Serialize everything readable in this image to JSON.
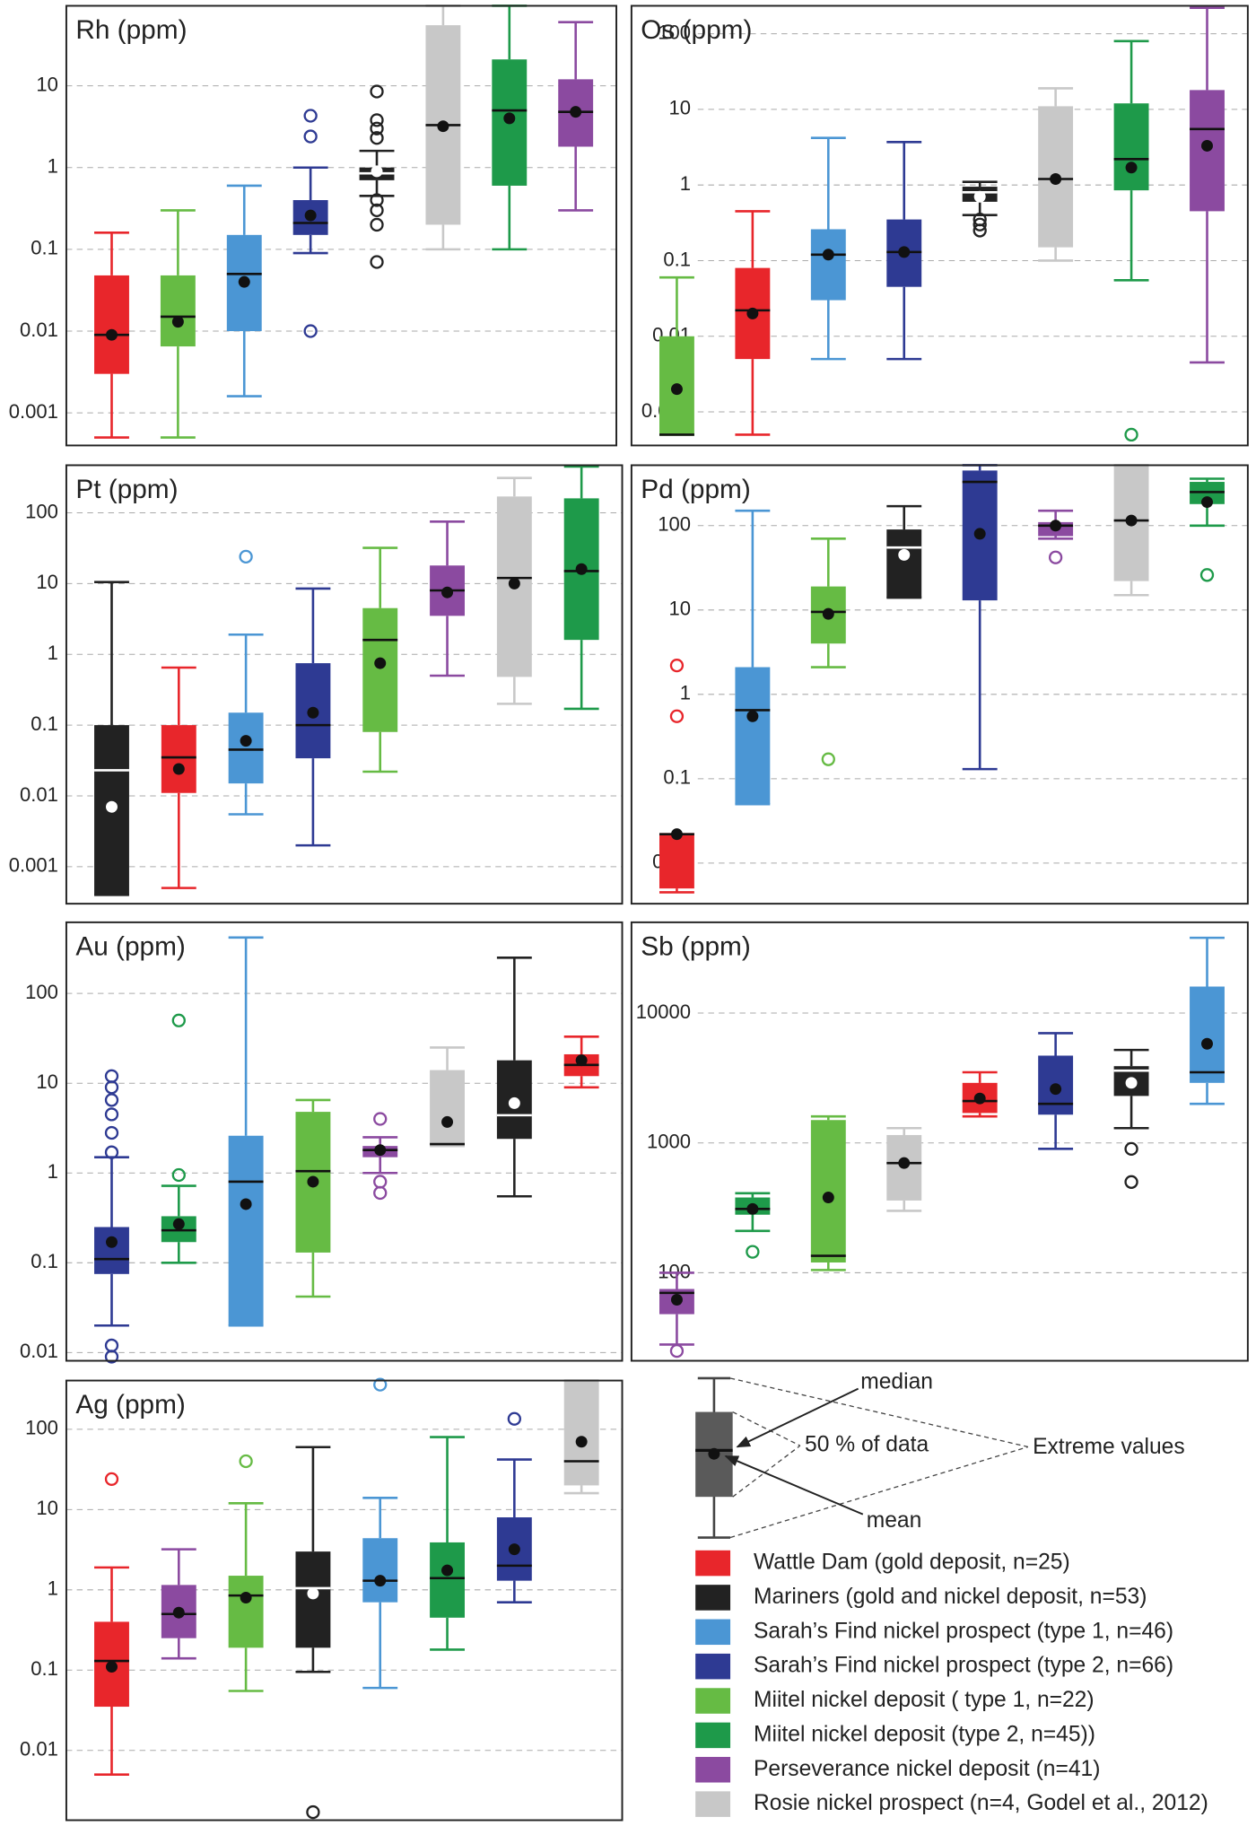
{
  "chart_data": [
    {
      "type": "box",
      "title": "Rh (ppm)",
      "yscale": "log",
      "grid": true,
      "ylim": [
        0.0004,
        95
      ],
      "yticks": [
        0.001,
        0.01,
        0.1,
        1,
        10
      ],
      "boxes": [
        {
          "color": "#e8262b",
          "whislo": 0.0005,
          "q1": 0.003,
          "med": 0.009,
          "q3": 0.048,
          "whishi": 0.16,
          "mean": 0.009
        },
        {
          "color": "#66bb44",
          "whislo": 0.0005,
          "q1": 0.0065,
          "med": 0.015,
          "q3": 0.048,
          "whishi": 0.3,
          "mean": 0.013
        },
        {
          "color": "#4b96d4",
          "whislo": 0.0016,
          "q1": 0.01,
          "med": 0.05,
          "q3": 0.15,
          "whishi": 0.6,
          "mean": 0.04
        },
        {
          "color": "#2e3a93",
          "whislo": 0.09,
          "q1": 0.15,
          "med": 0.21,
          "q3": 0.4,
          "whishi": 1.0,
          "mean": 0.26,
          "fliers": [
            4.3,
            2.4,
            0.01
          ]
        },
        {
          "color": "#222222",
          "whislo": 0.45,
          "q1": 0.7,
          "med": 0.85,
          "q3": 1.0,
          "whishi": 1.6,
          "mean": 0.9,
          "fliers": [
            8.5,
            3.8,
            3.0,
            2.3,
            0.4,
            0.3,
            0.2,
            0.07
          ]
        },
        {
          "color": "#c8c8c8",
          "whislo": 0.1,
          "q1": 0.2,
          "med": 3.3,
          "q3": 55,
          "whishi": 95,
          "mean": 3.2
        },
        {
          "color": "#1e9a4a",
          "whislo": 0.1,
          "q1": 0.6,
          "med": 5,
          "q3": 21,
          "whishi": 95,
          "mean": 4
        },
        {
          "color": "#8b4aa0",
          "whislo": 0.3,
          "q1": 1.8,
          "med": 4.8,
          "q3": 12,
          "whishi": 60,
          "mean": 4.8
        }
      ]
    },
    {
      "type": "box",
      "title": "Os (ppm)",
      "yscale": "log",
      "grid": true,
      "ylim": [
        0.00036,
        234
      ],
      "yticks": [
        0.001,
        0.01,
        0.1,
        1,
        10,
        100
      ],
      "boxes": [
        {
          "color": "#66bb44",
          "whislo": 0.0005,
          "q1": 0.0005,
          "med": 0.0005,
          "q3": 0.01,
          "whishi": 0.06,
          "mean": 0.002
        },
        {
          "color": "#e8262b",
          "whislo": 0.0005,
          "q1": 0.005,
          "med": 0.022,
          "q3": 0.08,
          "whishi": 0.45,
          "mean": 0.02
        },
        {
          "color": "#4b96d4",
          "whislo": 0.005,
          "q1": 0.03,
          "med": 0.12,
          "q3": 0.26,
          "whishi": 4.2,
          "mean": 0.12
        },
        {
          "color": "#2e3a93",
          "whislo": 0.005,
          "q1": 0.045,
          "med": 0.13,
          "q3": 0.35,
          "whishi": 3.7,
          "mean": 0.13
        },
        {
          "color": "#222222",
          "whislo": 0.4,
          "q1": 0.6,
          "med": 0.8,
          "q3": 0.95,
          "whishi": 1.1,
          "mean": 0.7,
          "fliers": [
            0.35,
            0.3,
            0.25
          ]
        },
        {
          "color": "#c8c8c8",
          "whislo": 0.1,
          "q1": 0.15,
          "med": 1.2,
          "q3": 11,
          "whishi": 19,
          "mean": 1.2
        },
        {
          "color": "#1e9a4a",
          "whislo": 0.055,
          "q1": 0.85,
          "med": 2.2,
          "q3": 12,
          "whishi": 80,
          "mean": 1.7,
          "fliers": [
            0.0005
          ]
        },
        {
          "color": "#8b4aa0",
          "whislo": 0.0045,
          "q1": 0.45,
          "med": 5.5,
          "q3": 18,
          "whishi": 220,
          "mean": 3.3
        }
      ]
    },
    {
      "type": "box",
      "title": "Pt (ppm)",
      "yscale": "log",
      "grid": true,
      "ylim": [
        0.0003,
        470
      ],
      "yticks": [
        0.001,
        0.01,
        0.1,
        1,
        10,
        100
      ],
      "boxes": [
        {
          "color": "#222222",
          "whislo": 0.0004,
          "q1": 0.0004,
          "med": 0.023,
          "q3": 0.1,
          "whishi": 10.5,
          "mean": 0.007
        },
        {
          "color": "#e8262b",
          "whislo": 0.0005,
          "q1": 0.011,
          "med": 0.035,
          "q3": 0.1,
          "whishi": 0.65,
          "mean": 0.024
        },
        {
          "color": "#4b96d4",
          "whislo": 0.0055,
          "q1": 0.015,
          "med": 0.045,
          "q3": 0.15,
          "whishi": 1.9,
          "mean": 0.06,
          "fliers": [
            24
          ]
        },
        {
          "color": "#2e3a93",
          "whislo": 0.002,
          "q1": 0.034,
          "med": 0.1,
          "q3": 0.75,
          "whishi": 8.5,
          "mean": 0.15
        },
        {
          "color": "#66bb44",
          "whislo": 0.022,
          "q1": 0.08,
          "med": 1.6,
          "q3": 4.5,
          "whishi": 32,
          "mean": 0.75
        },
        {
          "color": "#8b4aa0",
          "whislo": 0.5,
          "q1": 3.5,
          "med": 8,
          "q3": 18,
          "whishi": 75,
          "mean": 7.5
        },
        {
          "color": "#c8c8c8",
          "whislo": 0.2,
          "q1": 0.48,
          "med": 12,
          "q3": 170,
          "whishi": 310,
          "mean": 10
        },
        {
          "color": "#1e9a4a",
          "whislo": 0.17,
          "q1": 1.6,
          "med": 15,
          "q3": 160,
          "whishi": 450,
          "mean": 16
        }
      ]
    },
    {
      "type": "box",
      "title": "Pd (ppm)",
      "yscale": "log",
      "grid": true,
      "ylim": [
        0.0033,
        520
      ],
      "yticks": [
        0.01,
        0.1,
        1,
        10,
        100
      ],
      "boxes": [
        {
          "color": "#e8262b",
          "whislo": 0.0045,
          "q1": 0.005,
          "med": 0.022,
          "q3": 0.022,
          "whishi": 0.022,
          "mean": 0.022,
          "fliers": [
            2.2,
            0.55
          ]
        },
        {
          "color": "#4b96d4",
          "whislo": 0.05,
          "q1": 0.05,
          "med": 0.65,
          "q3": 2.1,
          "whishi": 150,
          "mean": 0.55
        },
        {
          "color": "#66bb44",
          "whislo": 2.1,
          "q1": 4,
          "med": 9.5,
          "q3": 19,
          "whishi": 70,
          "mean": 9,
          "fliers": [
            0.17
          ]
        },
        {
          "color": "#222222",
          "whislo": 14,
          "q1": 14,
          "med": 55,
          "q3": 90,
          "whishi": 170,
          "mean": 45
        },
        {
          "color": "#2e3a93",
          "whislo": 0.13,
          "q1": 13,
          "med": 330,
          "q3": 450,
          "whishi": 520,
          "mean": 80
        },
        {
          "color": "#8b4aa0",
          "whislo": 70,
          "q1": 75,
          "med": 100,
          "q3": 110,
          "whishi": 150,
          "mean": 100,
          "fliers": [
            42
          ]
        },
        {
          "color": "#c8c8c8",
          "whislo": 15,
          "q1": 22,
          "med": 115,
          "q3": 520,
          "whishi": 520,
          "mean": 115
        },
        {
          "color": "#1e9a4a",
          "whislo": 100,
          "q1": 180,
          "med": 250,
          "q3": 330,
          "whishi": 360,
          "mean": 190,
          "fliers": [
            26
          ]
        }
      ]
    },
    {
      "type": "box",
      "title": "Au (ppm)",
      "yscale": "log",
      "grid": true,
      "ylim": [
        0.0081,
        620
      ],
      "yticks": [
        0.01,
        0.1,
        1,
        10,
        100
      ],
      "boxes": [
        {
          "color": "#2e3a93",
          "whislo": 0.02,
          "q1": 0.075,
          "med": 0.11,
          "q3": 0.25,
          "whishi": 1.5,
          "mean": 0.17,
          "fliers": [
            12,
            9,
            6.5,
            4.5,
            2.8,
            1.7,
            0.012,
            0.009
          ]
        },
        {
          "color": "#1e9a4a",
          "whislo": 0.1,
          "q1": 0.17,
          "med": 0.23,
          "q3": 0.33,
          "whishi": 0.72,
          "mean": 0.27,
          "fliers": [
            50,
            0.95
          ]
        },
        {
          "color": "#4b96d4",
          "whislo": 0.02,
          "q1": 0.02,
          "med": 0.8,
          "q3": 2.6,
          "whishi": 420,
          "mean": 0.45
        },
        {
          "color": "#66bb44",
          "whislo": 0.042,
          "q1": 0.13,
          "med": 1.05,
          "q3": 4.8,
          "whishi": 6.5,
          "mean": 0.8
        },
        {
          "color": "#8b4aa0",
          "whislo": 1.0,
          "q1": 1.5,
          "med": 1.8,
          "q3": 2.0,
          "whishi": 2.5,
          "mean": 1.8,
          "fliers": [
            4,
            0.8,
            0.6
          ]
        },
        {
          "color": "#c8c8c8",
          "whislo": 2,
          "q1": 2,
          "med": 2.1,
          "q3": 14,
          "whishi": 25,
          "mean": 3.7
        },
        {
          "color": "#222222",
          "whislo": 0.55,
          "q1": 2.4,
          "med": 4.4,
          "q3": 18,
          "whishi": 250,
          "mean": 6
        },
        {
          "color": "#e8262b",
          "whislo": 9,
          "q1": 12,
          "med": 16,
          "q3": 21,
          "whishi": 33,
          "mean": 18
        }
      ]
    },
    {
      "type": "box",
      "title": "Sb (ppm)",
      "yscale": "log",
      "grid": true,
      "ylim": [
        21,
        50000
      ],
      "yticks": [
        100,
        1000,
        10000
      ],
      "boxes": [
        {
          "color": "#8b4aa0",
          "whislo": 28,
          "q1": 48,
          "med": 70,
          "q3": 75,
          "whishi": 100,
          "mean": 62,
          "fliers": [
            25
          ]
        },
        {
          "color": "#1e9a4a",
          "whislo": 210,
          "q1": 280,
          "med": 310,
          "q3": 380,
          "whishi": 410,
          "mean": 310,
          "fliers": [
            145
          ]
        },
        {
          "color": "#66bb44",
          "whislo": 105,
          "q1": 120,
          "med": 135,
          "q3": 1500,
          "whishi": 1600,
          "mean": 380
        },
        {
          "color": "#c8c8c8",
          "whislo": 300,
          "q1": 360,
          "med": 700,
          "q3": 1150,
          "whishi": 1300,
          "mean": 700
        },
        {
          "color": "#e8262b",
          "whislo": 1600,
          "q1": 1700,
          "med": 2100,
          "q3": 2900,
          "whishi": 3500,
          "mean": 2200
        },
        {
          "color": "#2e3a93",
          "whislo": 900,
          "q1": 1650,
          "med": 2000,
          "q3": 4700,
          "whishi": 7000,
          "mean": 2600
        },
        {
          "color": "#222222",
          "whislo": 1300,
          "q1": 2300,
          "med": 3600,
          "q3": 3900,
          "whishi": 5200,
          "mean": 2900,
          "fliers": [
            900,
            500
          ]
        },
        {
          "color": "#4b96d4",
          "whislo": 2000,
          "q1": 2900,
          "med": 3500,
          "q3": 16000,
          "whishi": 38000,
          "mean": 5800
        }
      ]
    },
    {
      "type": "box",
      "title": "Ag (ppm)",
      "yscale": "log",
      "grid": true,
      "ylim": [
        0.00135,
        405
      ],
      "yticks": [
        0.01,
        0.1,
        1,
        10,
        100
      ],
      "boxes": [
        {
          "color": "#e8262b",
          "whislo": 0.005,
          "q1": 0.035,
          "med": 0.13,
          "q3": 0.4,
          "whishi": 1.9,
          "mean": 0.11,
          "fliers": [
            24
          ]
        },
        {
          "color": "#8b4aa0",
          "whislo": 0.14,
          "q1": 0.25,
          "med": 0.5,
          "q3": 1.15,
          "whishi": 3.2,
          "mean": 0.52
        },
        {
          "color": "#66bb44",
          "whislo": 0.055,
          "q1": 0.19,
          "med": 0.85,
          "q3": 1.5,
          "whishi": 12,
          "mean": 0.8,
          "fliers": [
            40
          ]
        },
        {
          "color": "#222222",
          "whislo": 0.095,
          "q1": 0.19,
          "med": 1.05,
          "q3": 3,
          "whishi": 60,
          "mean": 0.9,
          "fliers": [
            0.0017
          ]
        },
        {
          "color": "#4b96d4",
          "whislo": 0.06,
          "q1": 0.7,
          "med": 1.3,
          "q3": 4.4,
          "whishi": 14,
          "mean": 1.3,
          "fliers": [
            360
          ]
        },
        {
          "color": "#1e9a4a",
          "whislo": 0.18,
          "q1": 0.45,
          "med": 1.4,
          "q3": 3.9,
          "whishi": 80,
          "mean": 1.75
        },
        {
          "color": "#2e3a93",
          "whislo": 0.7,
          "q1": 1.3,
          "med": 2,
          "q3": 8,
          "whishi": 42,
          "mean": 3.2,
          "fliers": [
            135
          ]
        },
        {
          "color": "#c8c8c8",
          "whislo": 16,
          "q1": 20,
          "med": 40,
          "q3": 405,
          "whishi": 405,
          "mean": 70
        }
      ]
    }
  ],
  "legend": {
    "items": [
      {
        "name": "Wattle Dam (gold deposit, n=25)",
        "color": "#e8262b"
      },
      {
        "name": "Mariners (gold and nickel deposit, n=53)",
        "color": "#222222"
      },
      {
        "name": "Sarah’s Find nickel prospect (type 1, n=46)",
        "color": "#4b96d4"
      },
      {
        "name": "Sarah’s Find nickel prospect (type 2, n=66)",
        "color": "#2e3a93"
      },
      {
        "name": "Miitel nickel deposit ( type 1, n=22)",
        "color": "#66bb44"
      },
      {
        "name": "Miitel nickel deposit (type 2, n=45))",
        "color": "#1e9a4a"
      },
      {
        "name": "Perseverance nickel deposit (n=41)",
        "color": "#8b4aa0"
      },
      {
        "name": "Rosie nickel prospect (n=4, Godel et al., 2012)",
        "color": "#c8c8c8"
      }
    ]
  },
  "key": {
    "median": "median",
    "box": "50 % of data",
    "extremes": "Extreme values",
    "mean": "mean"
  }
}
